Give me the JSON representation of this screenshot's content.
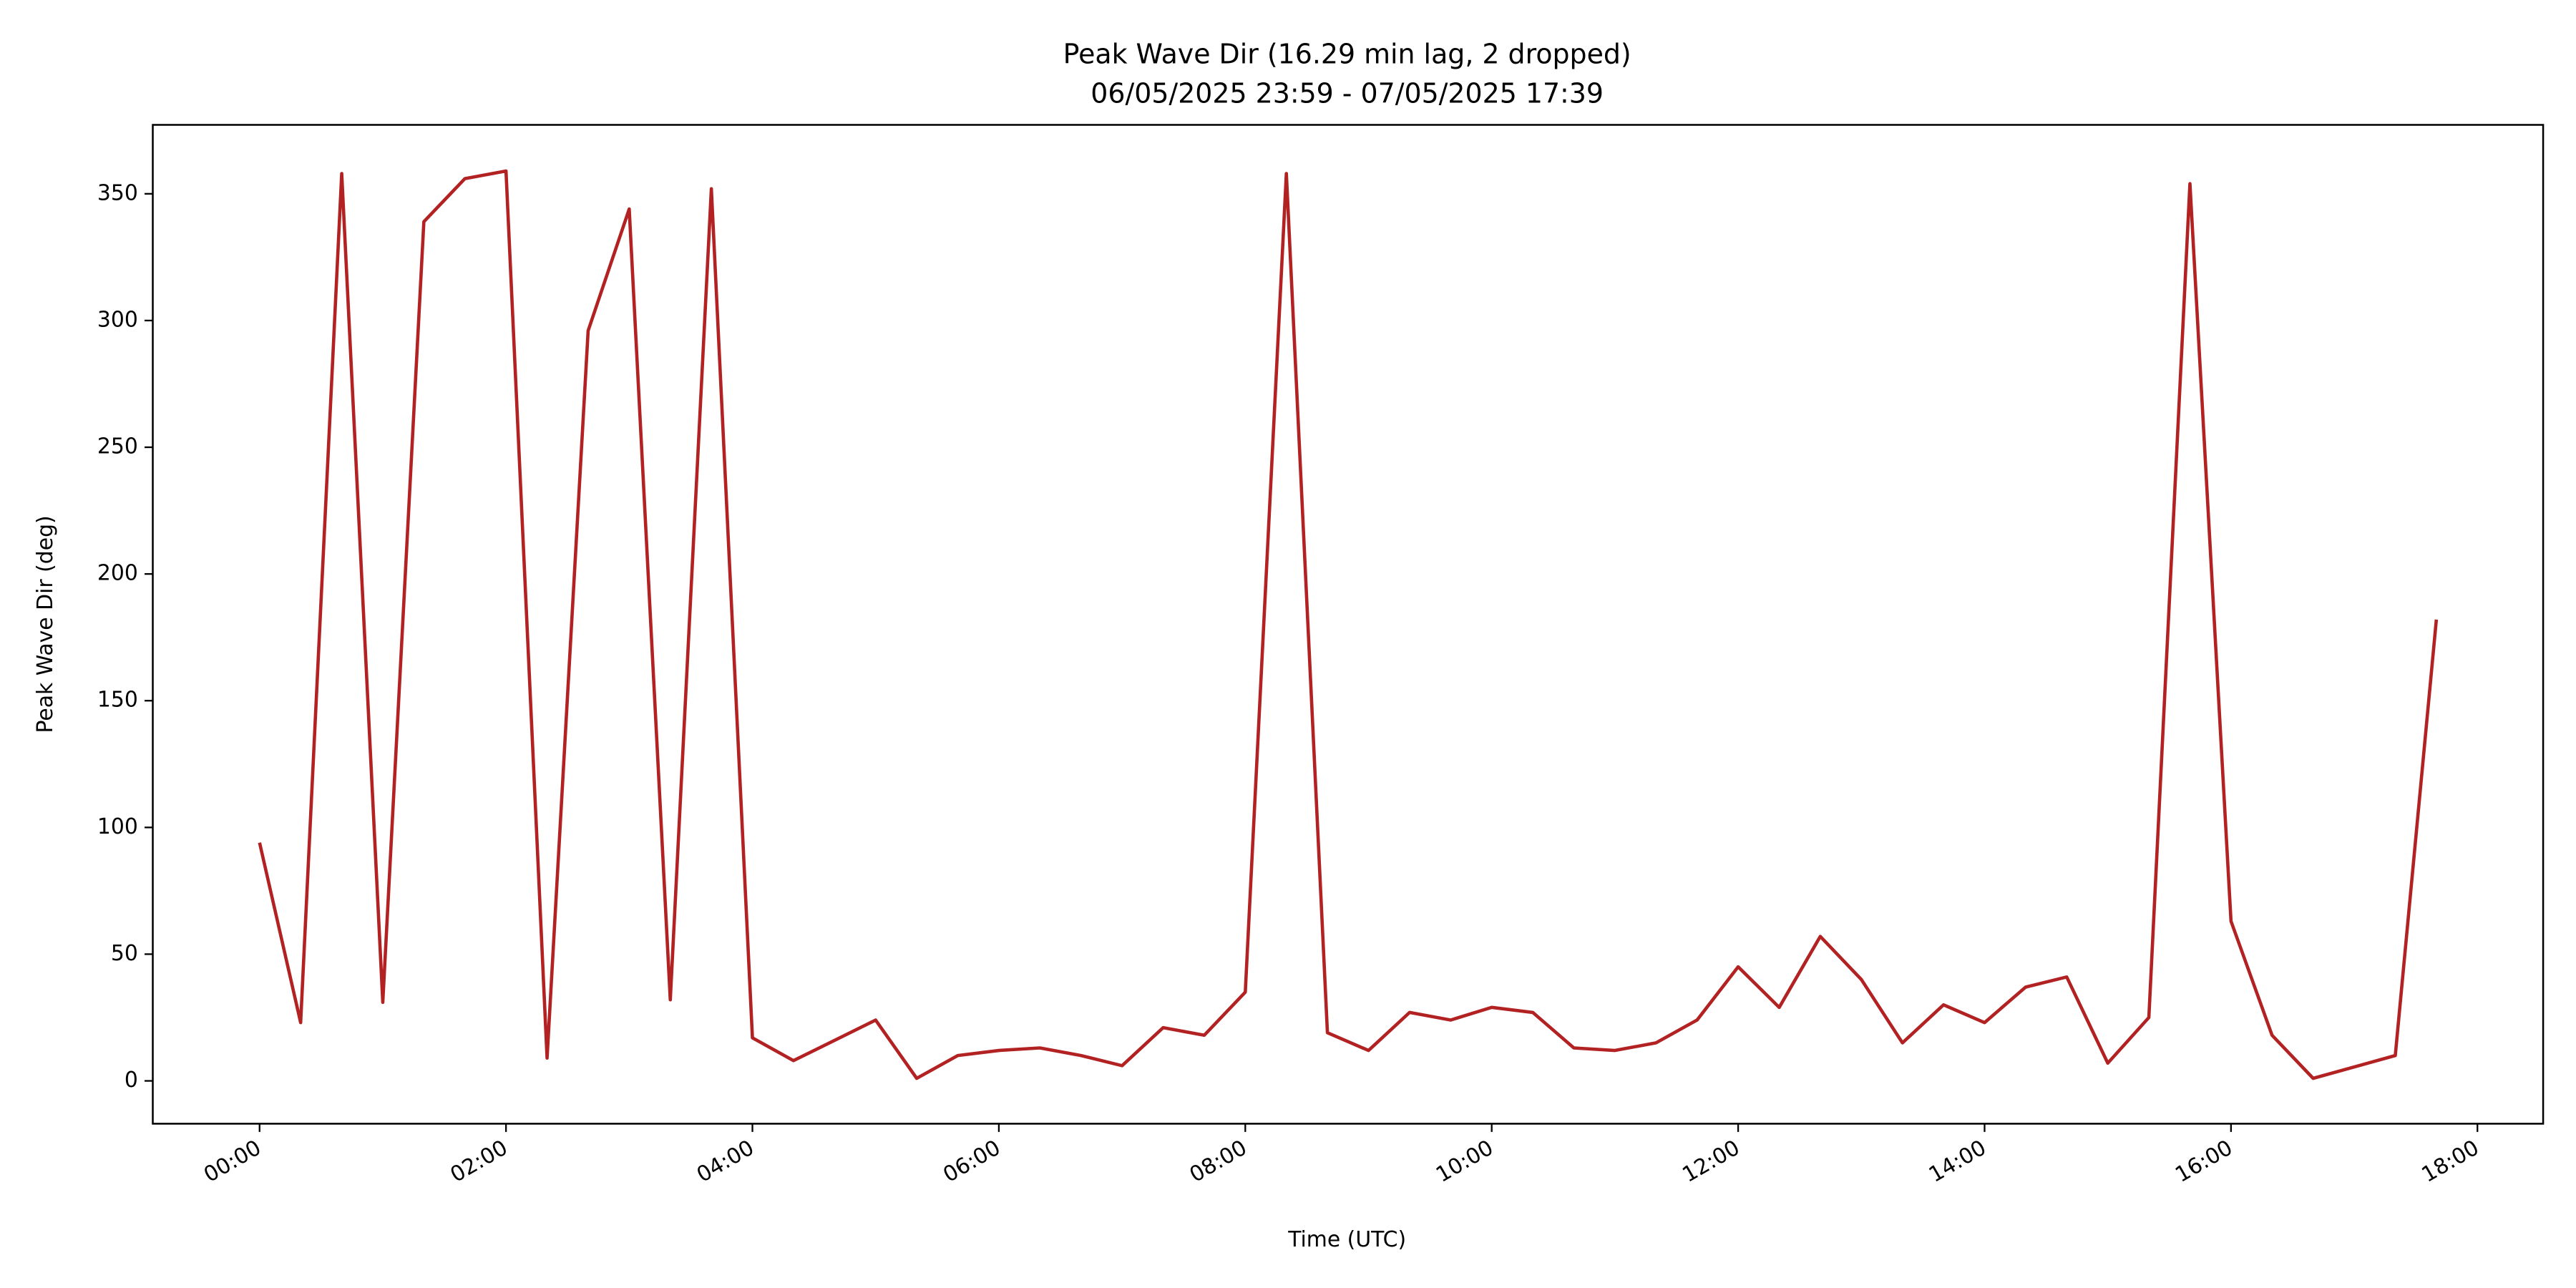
{
  "chart_data": {
    "type": "line",
    "title": "Peak Wave Dir (16.29 min lag, 2 dropped)",
    "subtitle": "06/05/2025 23:59 - 07/05/2025 17:39",
    "x_label": "Time (UTC)",
    "y_label": "Peak Wave Dir (deg)",
    "x": [
      "00:00",
      "00:20",
      "00:40",
      "01:00",
      "01:20",
      "01:40",
      "02:00",
      "02:20",
      "02:40",
      "03:00",
      "03:20",
      "03:40",
      "04:00",
      "04:20",
      "05:00",
      "05:20",
      "05:40",
      "06:00",
      "06:20",
      "06:40",
      "07:00",
      "07:20",
      "07:40",
      "08:00",
      "08:20",
      "08:40",
      "09:00",
      "09:20",
      "09:40",
      "10:00",
      "10:20",
      "10:40",
      "11:00",
      "11:20",
      "11:40",
      "12:00",
      "12:20",
      "12:40",
      "13:00",
      "13:20",
      "13:40",
      "14:00",
      "14:20",
      "14:40",
      "15:00",
      "15:20",
      "15:40",
      "16:00",
      "16:20",
      "16:40",
      "17:20",
      "17:40"
    ],
    "series": [
      {
        "color": "#b22222",
        "values": [
          94,
          23,
          358,
          31,
          339,
          356,
          359,
          9,
          296,
          344,
          32,
          352,
          17,
          8,
          24,
          1,
          10,
          12,
          13,
          10,
          6,
          21,
          18,
          35,
          358,
          19,
          12,
          27,
          24,
          29,
          27,
          13,
          12,
          15,
          24,
          45,
          29,
          57,
          40,
          15,
          30,
          23,
          37,
          41,
          7,
          25,
          354,
          63,
          18,
          1,
          10,
          182
        ]
      }
    ],
    "xlim": [
      "23:08",
      "18:32"
    ],
    "xticks": [
      "00:00",
      "02:00",
      "04:00",
      "06:00",
      "08:00",
      "10:00",
      "12:00",
      "14:00",
      "16:00",
      "18:00"
    ],
    "ylim": [
      -16.9,
      377.2
    ],
    "yticks": [
      0,
      50,
      100,
      150,
      200,
      250,
      300,
      350
    ],
    "grid": false
  }
}
